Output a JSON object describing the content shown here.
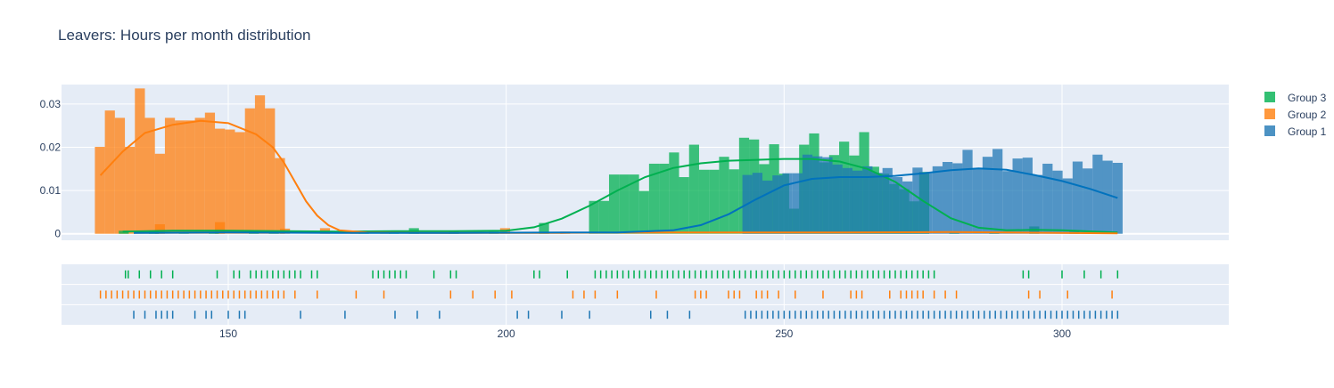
{
  "chart_data": {
    "type": "histogram",
    "title": "Leavers: Hours per month distribution",
    "xlim": [
      120,
      330
    ],
    "ylim": [
      -0.0015,
      0.0345
    ],
    "x_ticks": [
      150,
      200,
      250,
      300
    ],
    "y_ticks": [
      0,
      0.01,
      0.02,
      0.03
    ],
    "y_tick_labels": [
      "0",
      "0.01",
      "0.02",
      "0.03"
    ],
    "grid": true,
    "legend_position": "right",
    "bin_width": 1.8,
    "series": [
      {
        "name": "Group 3",
        "color": "#00b050",
        "density": [
          [
            131.2,
            0.0007
          ],
          [
            136.6,
            0.0005
          ],
          [
            142.0,
            0.0004
          ],
          [
            147.4,
            0.0004
          ],
          [
            154.6,
            0.0007
          ],
          [
            158.2,
            0.0003
          ],
          [
            174.4,
            0.0007
          ],
          [
            179.8,
            0.0004
          ],
          [
            183.4,
            0.0013
          ],
          [
            190.6,
            0.0006
          ],
          [
            197.8,
            0.0005
          ],
          [
            206.8,
            0.0025
          ],
          [
            215.8,
            0.0076
          ],
          [
            217.6,
            0.0076
          ],
          [
            219.4,
            0.0137
          ],
          [
            221.2,
            0.0137
          ],
          [
            223.0,
            0.0137
          ],
          [
            224.8,
            0.0099
          ],
          [
            226.6,
            0.0162
          ],
          [
            228.4,
            0.0162
          ],
          [
            230.2,
            0.0188
          ],
          [
            232.0,
            0.0131
          ],
          [
            233.8,
            0.0206
          ],
          [
            235.6,
            0.0148
          ],
          [
            237.4,
            0.0148
          ],
          [
            239.2,
            0.0178
          ],
          [
            241.0,
            0.0149
          ],
          [
            242.8,
            0.0222
          ],
          [
            244.6,
            0.0218
          ],
          [
            246.4,
            0.0161
          ],
          [
            248.2,
            0.0207
          ],
          [
            250.0,
            0.0139
          ],
          [
            251.8,
            0.0058
          ],
          [
            253.6,
            0.0206
          ],
          [
            255.4,
            0.0232
          ],
          [
            257.2,
            0.0165
          ],
          [
            259.0,
            0.0182
          ],
          [
            260.8,
            0.0213
          ],
          [
            262.6,
            0.0181
          ],
          [
            264.4,
            0.0235
          ],
          [
            266.2,
            0.0155
          ],
          [
            268.0,
            0.0139
          ],
          [
            269.8,
            0.0115
          ],
          [
            271.6,
            0.0103
          ],
          [
            273.4,
            0.0075
          ],
          [
            275.2,
            0.0143
          ],
          [
            280.6,
            0.0004
          ],
          [
            287.8,
            0.0004
          ],
          [
            295.0,
            0.0017
          ],
          [
            302.2,
            0.0005
          ],
          [
            307.6,
            0.0003
          ]
        ],
        "kde": [
          [
            131,
            0.0005
          ],
          [
            140,
            0.0007
          ],
          [
            150,
            0.0007
          ],
          [
            160,
            0.0006
          ],
          [
            170,
            0.0005
          ],
          [
            180,
            0.0006
          ],
          [
            190,
            0.0006
          ],
          [
            200,
            0.0007
          ],
          [
            205,
            0.0015
          ],
          [
            210,
            0.0035
          ],
          [
            215,
            0.0065
          ],
          [
            220,
            0.01
          ],
          [
            225,
            0.0131
          ],
          [
            230,
            0.0152
          ],
          [
            235,
            0.0163
          ],
          [
            240,
            0.0169
          ],
          [
            245,
            0.0171
          ],
          [
            250,
            0.0173
          ],
          [
            255,
            0.0173
          ],
          [
            260,
            0.0167
          ],
          [
            265,
            0.015
          ],
          [
            270,
            0.012
          ],
          [
            275,
            0.0076
          ],
          [
            280,
            0.0036
          ],
          [
            285,
            0.0014
          ],
          [
            290,
            0.0008
          ],
          [
            295,
            0.0009
          ],
          [
            300,
            0.0008
          ],
          [
            310,
            0.0003
          ]
        ],
        "rug": [
          131.5,
          132,
          134,
          136,
          138,
          140,
          148,
          151,
          152,
          154,
          155,
          156,
          157,
          158,
          159,
          160,
          161,
          162,
          163,
          165,
          166,
          176,
          177,
          178,
          179,
          180,
          181,
          182,
          187,
          190,
          191,
          205,
          206,
          211,
          216,
          217,
          218,
          219,
          220,
          221,
          222,
          223,
          224,
          225,
          226,
          227,
          228,
          229,
          230,
          231,
          232,
          233,
          234,
          235,
          236,
          237,
          238,
          239,
          240,
          241,
          242,
          243,
          244,
          245,
          246,
          247,
          248,
          249,
          250,
          251,
          252,
          253,
          254,
          255,
          256,
          257,
          258,
          259,
          260,
          261,
          262,
          263,
          264,
          265,
          266,
          267,
          268,
          269,
          270,
          271,
          272,
          273,
          274,
          275,
          276,
          277,
          293,
          294,
          300,
          304,
          307,
          310
        ]
      },
      {
        "name": "Group 2",
        "color": "#ff7f0e",
        "density": [
          [
            126.9,
            0.0201
          ],
          [
            128.7,
            0.0285
          ],
          [
            130.5,
            0.0268
          ],
          [
            132.3,
            0.0201
          ],
          [
            134.1,
            0.0336
          ],
          [
            135.9,
            0.0268
          ],
          [
            137.7,
            0.0185
          ],
          [
            139.5,
            0.0268
          ],
          [
            141.3,
            0.0262
          ],
          [
            143.1,
            0.0262
          ],
          [
            144.9,
            0.0268
          ],
          [
            146.7,
            0.028
          ],
          [
            148.5,
            0.0243
          ],
          [
            150.3,
            0.0241
          ],
          [
            152.1,
            0.0235
          ],
          [
            153.9,
            0.029
          ],
          [
            155.7,
            0.032
          ],
          [
            157.5,
            0.029
          ],
          [
            159.3,
            0.0175
          ],
          [
            137.7,
            0.0022
          ],
          [
            148.5,
            0.0027
          ],
          [
            160.2,
            0.0012
          ],
          [
            167.4,
            0.0013
          ],
          [
            172.8,
            0.0006
          ],
          [
            178.2,
            0.0006
          ],
          [
            189.0,
            0.0004
          ],
          [
            199.8,
            0.0013
          ],
          [
            210.6,
            0.0005
          ]
        ],
        "kde": [
          [
            127,
            0.0135
          ],
          [
            131,
            0.019
          ],
          [
            135,
            0.0233
          ],
          [
            140,
            0.0252
          ],
          [
            145,
            0.0261
          ],
          [
            150,
            0.0256
          ],
          [
            155,
            0.023
          ],
          [
            158,
            0.02
          ],
          [
            160,
            0.0165
          ],
          [
            162,
            0.012
          ],
          [
            164,
            0.0075
          ],
          [
            166,
            0.0042
          ],
          [
            168,
            0.002
          ],
          [
            170,
            0.0008
          ],
          [
            175,
            0.0003
          ],
          [
            185,
            0.0002
          ],
          [
            200,
            0.0002
          ],
          [
            210,
            0.0002
          ],
          [
            230,
            0.0003
          ],
          [
            260,
            0.0003
          ],
          [
            280,
            0.0004
          ],
          [
            300,
            0.0002
          ],
          [
            310,
            0.0001
          ]
        ],
        "rug": [
          127,
          128,
          129,
          130,
          131,
          132,
          133,
          134,
          135,
          136,
          137,
          138,
          139,
          140,
          141,
          142,
          143,
          144,
          145,
          146,
          147,
          148,
          149,
          150,
          151,
          152,
          153,
          154,
          155,
          156,
          157,
          158,
          159,
          160,
          162,
          166,
          173,
          178,
          190,
          194,
          198,
          201,
          212,
          214,
          216,
          220,
          227,
          234,
          235,
          236,
          240,
          241,
          242,
          245,
          246,
          247,
          249,
          252,
          257,
          262,
          263,
          264,
          269,
          271,
          272,
          273,
          274,
          275,
          277,
          279,
          281,
          294,
          296,
          301,
          309
        ]
      },
      {
        "name": "Group 1",
        "color": "#1f77b4",
        "density": [
          [
            243.4,
            0.0136
          ],
          [
            245.2,
            0.0141
          ],
          [
            247.0,
            0.0123
          ],
          [
            248.8,
            0.0135
          ],
          [
            250.6,
            0.014
          ],
          [
            252.4,
            0.014
          ],
          [
            254.2,
            0.0183
          ],
          [
            256.0,
            0.0179
          ],
          [
            257.8,
            0.0177
          ],
          [
            259.6,
            0.016
          ],
          [
            261.4,
            0.0152
          ],
          [
            263.2,
            0.0146
          ],
          [
            265.0,
            0.0156
          ],
          [
            266.8,
            0.0141
          ],
          [
            268.6,
            0.0152
          ],
          [
            270.4,
            0.0131
          ],
          [
            272.2,
            0.0121
          ],
          [
            274.0,
            0.0153
          ],
          [
            275.8,
            0.014
          ],
          [
            277.6,
            0.0156
          ],
          [
            279.4,
            0.0166
          ],
          [
            281.2,
            0.0163
          ],
          [
            283.0,
            0.0194
          ],
          [
            284.8,
            0.015
          ],
          [
            286.6,
            0.0178
          ],
          [
            288.4,
            0.0196
          ],
          [
            290.2,
            0.0145
          ],
          [
            292.0,
            0.0174
          ],
          [
            293.8,
            0.0176
          ],
          [
            295.6,
            0.0136
          ],
          [
            297.4,
            0.0162
          ],
          [
            299.2,
            0.0146
          ],
          [
            301.0,
            0.0128
          ],
          [
            302.8,
            0.0167
          ],
          [
            304.6,
            0.0151
          ],
          [
            306.4,
            0.0183
          ],
          [
            308.2,
            0.0169
          ],
          [
            310.0,
            0.0164
          ]
        ],
        "kde": [
          [
            133,
            0.0002
          ],
          [
            150,
            0.0003
          ],
          [
            170,
            0.0002
          ],
          [
            190,
            0.0002
          ],
          [
            210,
            0.0003
          ],
          [
            220,
            0.0003
          ],
          [
            230,
            0.0008
          ],
          [
            235,
            0.002
          ],
          [
            240,
            0.0045
          ],
          [
            245,
            0.008
          ],
          [
            250,
            0.0112
          ],
          [
            255,
            0.0127
          ],
          [
            260,
            0.0131
          ],
          [
            265,
            0.0131
          ],
          [
            270,
            0.0134
          ],
          [
            275,
            0.014
          ],
          [
            280,
            0.0147
          ],
          [
            285,
            0.0151
          ],
          [
            290,
            0.0148
          ],
          [
            295,
            0.0136
          ],
          [
            300,
            0.0122
          ],
          [
            305,
            0.0104
          ],
          [
            310,
            0.0083
          ]
        ],
        "rug": [
          133,
          135,
          137,
          138,
          139,
          140,
          144,
          146,
          147,
          150,
          152,
          153,
          163,
          171,
          180,
          184,
          188,
          202,
          204,
          210,
          215,
          226,
          229,
          233,
          243,
          244,
          245,
          246,
          247,
          248,
          249,
          250,
          251,
          252,
          253,
          254,
          255,
          256,
          257,
          258,
          259,
          260,
          261,
          262,
          263,
          264,
          265,
          266,
          267,
          268,
          269,
          270,
          271,
          272,
          273,
          274,
          275,
          276,
          277,
          278,
          279,
          280,
          281,
          282,
          283,
          284,
          285,
          286,
          287,
          288,
          289,
          290,
          291,
          292,
          293,
          294,
          295,
          296,
          297,
          298,
          299,
          300,
          301,
          302,
          303,
          304,
          305,
          306,
          307,
          308,
          309,
          310
        ]
      }
    ]
  }
}
